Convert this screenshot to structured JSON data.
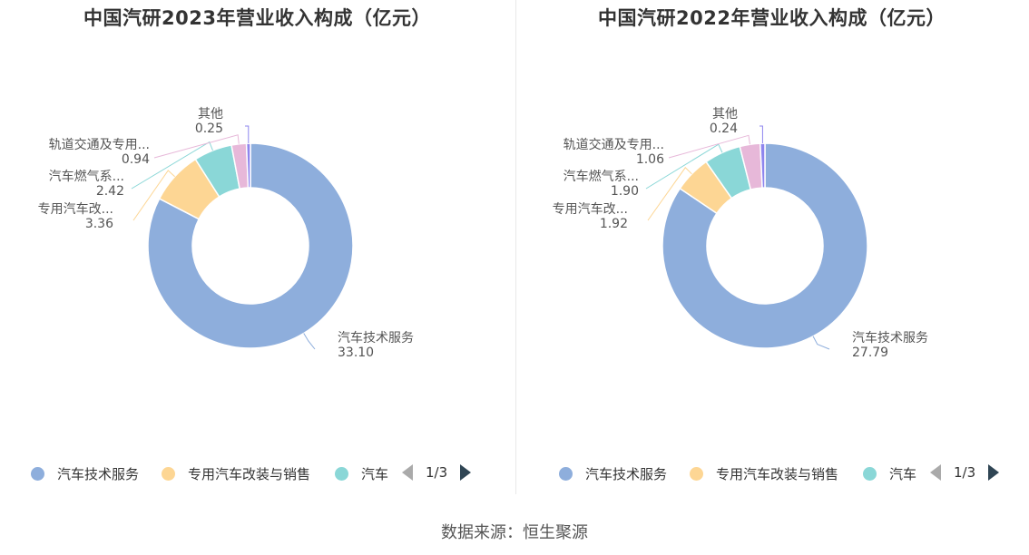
{
  "source": "数据来源：恒生聚源",
  "colors": [
    "#8eaedc",
    "#fdd694",
    "#8ad7d7",
    "#e7b8d9",
    "#8e85ee"
  ],
  "pager": {
    "text": "1/3"
  },
  "legend_items": [
    "汽车技术服务",
    "专用汽车改装与销售",
    "汽车"
  ],
  "chart_data": [
    {
      "type": "pie",
      "title": "中国汽研2023年营业收入构成（亿元）",
      "slices": [
        {
          "label": "汽车技术服务",
          "value": 33.1,
          "value_text": "33.10"
        },
        {
          "label": "专用汽车改...",
          "value": 3.36,
          "value_text": "3.36"
        },
        {
          "label": "汽车燃气系...",
          "value": 2.42,
          "value_text": "2.42"
        },
        {
          "label": "轨道交通及专用...",
          "value": 0.94,
          "value_text": "0.94"
        },
        {
          "label": "其他",
          "value": 0.25,
          "value_text": "0.25"
        }
      ]
    },
    {
      "type": "pie",
      "title": "中国汽研2022年营业收入构成（亿元）",
      "slices": [
        {
          "label": "汽车技术服务",
          "value": 27.79,
          "value_text": "27.79"
        },
        {
          "label": "专用汽车改...",
          "value": 1.92,
          "value_text": "1.92"
        },
        {
          "label": "汽车燃气系...",
          "value": 1.9,
          "value_text": "1.90"
        },
        {
          "label": "轨道交通及专用...",
          "value": 1.06,
          "value_text": "1.06"
        },
        {
          "label": "其他",
          "value": 0.24,
          "value_text": "0.24"
        }
      ]
    }
  ]
}
